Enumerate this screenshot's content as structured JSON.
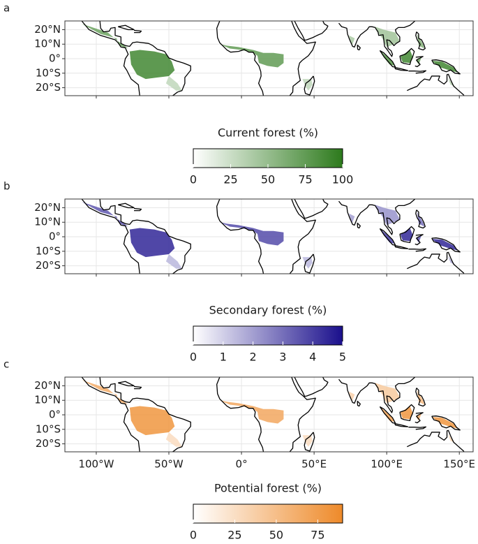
{
  "chart_data": [
    {
      "type": "map",
      "panel": "a",
      "xlim": [
        -121.6,
        159.5
      ],
      "ylim": [
        -25.5,
        26
      ],
      "yticks": [
        {
          "value": 20,
          "label": "20°N"
        },
        {
          "value": 10,
          "label": "10°N"
        },
        {
          "value": 0,
          "label": "0°"
        },
        {
          "value": -10,
          "label": "10°S"
        },
        {
          "value": -20,
          "label": "20°S"
        }
      ],
      "colorbar": {
        "title": "Current forest (%)",
        "lim": [
          0,
          100
        ],
        "ticks": [
          0,
          25,
          50,
          75,
          100
        ],
        "colors": [
          "#ffffff",
          "#2d7a1c"
        ]
      }
    },
    {
      "type": "map",
      "panel": "b",
      "xlim": [
        -121.6,
        159.5
      ],
      "ylim": [
        -25.5,
        26
      ],
      "yticks": [
        {
          "value": 20,
          "label": "20°N"
        },
        {
          "value": 10,
          "label": "10°N"
        },
        {
          "value": 0,
          "label": "0°"
        },
        {
          "value": -10,
          "label": "10°S"
        },
        {
          "value": -20,
          "label": "20°S"
        }
      ],
      "colorbar": {
        "title": "Secondary forest (%)",
        "lim": [
          0,
          5
        ],
        "ticks": [
          0,
          1,
          2,
          3,
          4,
          5
        ],
        "colors": [
          "#ffffff",
          "#1a0f8c"
        ]
      }
    },
    {
      "type": "map",
      "panel": "c",
      "xlim": [
        -121.6,
        159.5
      ],
      "ylim": [
        -25.5,
        26
      ],
      "xticks": [
        {
          "value": -100,
          "label": "100°W"
        },
        {
          "value": -50,
          "label": "50°W"
        },
        {
          "value": 0,
          "label": "0°"
        },
        {
          "value": 50,
          "label": "50°E"
        },
        {
          "value": 100,
          "label": "100°E"
        },
        {
          "value": 150,
          "label": "150°E"
        }
      ],
      "yticks": [
        {
          "value": 20,
          "label": "20°N"
        },
        {
          "value": 10,
          "label": "10°N"
        },
        {
          "value": 0,
          "label": "0°"
        },
        {
          "value": -10,
          "label": "10°S"
        },
        {
          "value": -20,
          "label": "20°S"
        }
      ],
      "colorbar": {
        "title": "Potential forest (%)",
        "lim": [
          0,
          90
        ],
        "ticks": [
          0,
          25,
          50,
          75
        ],
        "colors": [
          "#ffffff",
          "#ee8a2a"
        ]
      }
    }
  ]
}
